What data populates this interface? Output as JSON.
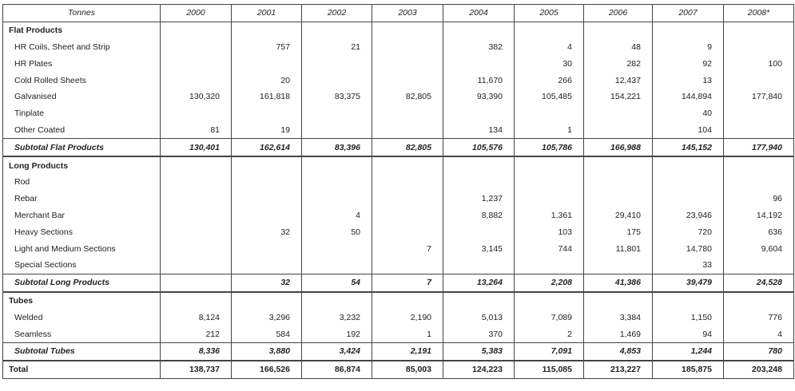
{
  "table": {
    "header": [
      "Tonnes",
      "2000",
      "2001",
      "2002",
      "2003",
      "2004",
      "2005",
      "2006",
      "2007",
      "2008*"
    ],
    "sections": [
      {
        "title": "Flat Products",
        "rows": [
          {
            "label": "HR Coils, Sheet and Strip",
            "cells": [
              null,
              "757",
              "21",
              null,
              "382",
              "4",
              "48",
              "9",
              null
            ]
          },
          {
            "label": "HR Plates",
            "cells": [
              null,
              null,
              null,
              null,
              null,
              "30",
              "282",
              "92",
              "100"
            ]
          },
          {
            "label": "Cold Rolled Sheets",
            "cells": [
              null,
              "20",
              null,
              null,
              "11,670",
              "266",
              "12,437",
              "13",
              null
            ]
          },
          {
            "label": "Galvanised",
            "cells": [
              "130,320",
              "161,818",
              "83,375",
              "82,805",
              "93,390",
              "105,485",
              "154,221",
              "144,894",
              "177,840"
            ]
          },
          {
            "label": "Tinplate",
            "cells": [
              null,
              null,
              null,
              null,
              null,
              null,
              null,
              "40",
              null
            ]
          },
          {
            "label": "Other Coated",
            "cells": [
              "81",
              "19",
              null,
              null,
              "134",
              "1",
              null,
              "104",
              null
            ]
          }
        ],
        "subtotal": {
          "label": "Subtotal Flat Products",
          "cells": [
            "130,401",
            "162,614",
            "83,396",
            "82,805",
            "105,576",
            "105,786",
            "166,988",
            "145,152",
            "177,940"
          ]
        }
      },
      {
        "title": "Long Products",
        "rows": [
          {
            "label": "Rod",
            "cells": [
              null,
              null,
              null,
              null,
              null,
              null,
              null,
              null,
              null
            ]
          },
          {
            "label": "Rebar",
            "cells": [
              null,
              null,
              null,
              null,
              "1,237",
              null,
              null,
              null,
              "96"
            ]
          },
          {
            "label": "Merchant Bar",
            "cells": [
              null,
              null,
              "4",
              null,
              "8,882",
              "1,361",
              "29,410",
              "23,946",
              "14,192"
            ]
          },
          {
            "label": "Heavy Sections",
            "cells": [
              null,
              "32",
              "50",
              null,
              null,
              "103",
              "175",
              "720",
              "636"
            ]
          },
          {
            "label": "Light and Medium Sections",
            "cells": [
              null,
              null,
              null,
              "7",
              "3,145",
              "744",
              "11,801",
              "14,780",
              "9,604"
            ]
          },
          {
            "label": "Special Sections",
            "cells": [
              null,
              null,
              null,
              null,
              null,
              null,
              null,
              "33",
              null
            ]
          }
        ],
        "subtotal": {
          "label": "Subtotal Long Products",
          "cells": [
            null,
            "32",
            "54",
            "7",
            "13,264",
            "2,208",
            "41,386",
            "39,479",
            "24,528"
          ]
        }
      },
      {
        "title": "Tubes",
        "rows": [
          {
            "label": "Welded",
            "cells": [
              "8,124",
              "3,296",
              "3,232",
              "2,190",
              "5,013",
              "7,089",
              "3,384",
              "1,150",
              "776"
            ]
          },
          {
            "label": "Seamless",
            "cells": [
              "212",
              "584",
              "192",
              "1",
              "370",
              "2",
              "1,469",
              "94",
              "4"
            ]
          }
        ],
        "subtotal": {
          "label": "Subtotal Tubes",
          "cells": [
            "8,336",
            "3,880",
            "3,424",
            "2,191",
            "5,383",
            "7,091",
            "4,853",
            "1,244",
            "780"
          ]
        }
      }
    ],
    "total": {
      "label": "Total",
      "cells": [
        "138,737",
        "166,526",
        "86,874",
        "85,003",
        "124,223",
        "115,085",
        "213,227",
        "185,875",
        "203,248"
      ]
    }
  }
}
